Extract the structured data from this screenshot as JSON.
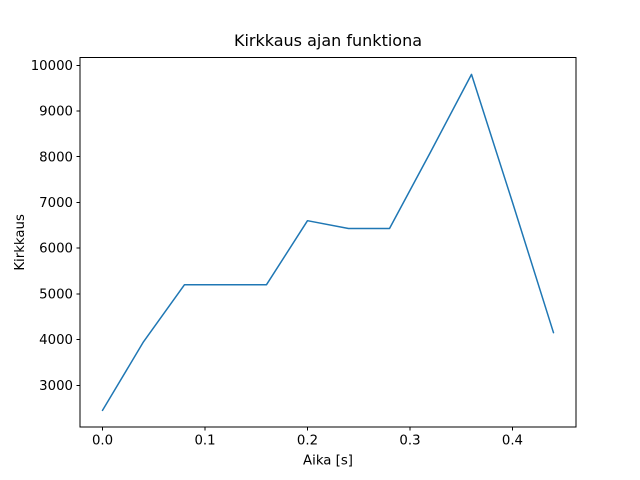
{
  "figure": {
    "background": "#ffffff"
  },
  "chart_data": {
    "type": "line",
    "title": "Kirkkaus ajan funktiona",
    "xlabel": "Aika [s]",
    "ylabel": "Kirkkaus",
    "x": [
      0.0,
      0.04,
      0.08,
      0.12,
      0.16,
      0.2,
      0.24,
      0.28,
      0.32,
      0.36,
      0.4,
      0.44
    ],
    "y": [
      2450,
      3950,
      5200,
      5200,
      5200,
      6600,
      6430,
      6430,
      8100,
      9800,
      7000,
      4150
    ],
    "xlim": [
      -0.022,
      0.462
    ],
    "ylim": [
      2082.5,
      10167.5
    ],
    "xticks": [
      0.0,
      0.1,
      0.2,
      0.3,
      0.4
    ],
    "xtick_labels": [
      "0.0",
      "0.1",
      "0.2",
      "0.3",
      "0.4"
    ],
    "yticks": [
      3000,
      4000,
      5000,
      6000,
      7000,
      8000,
      9000,
      10000
    ],
    "ytick_labels": [
      "3000",
      "4000",
      "5000",
      "6000",
      "7000",
      "8000",
      "9000",
      "10000"
    ],
    "line_color": "#1f77b4",
    "axis_color": "#000000",
    "grid": false,
    "legend": null
  }
}
